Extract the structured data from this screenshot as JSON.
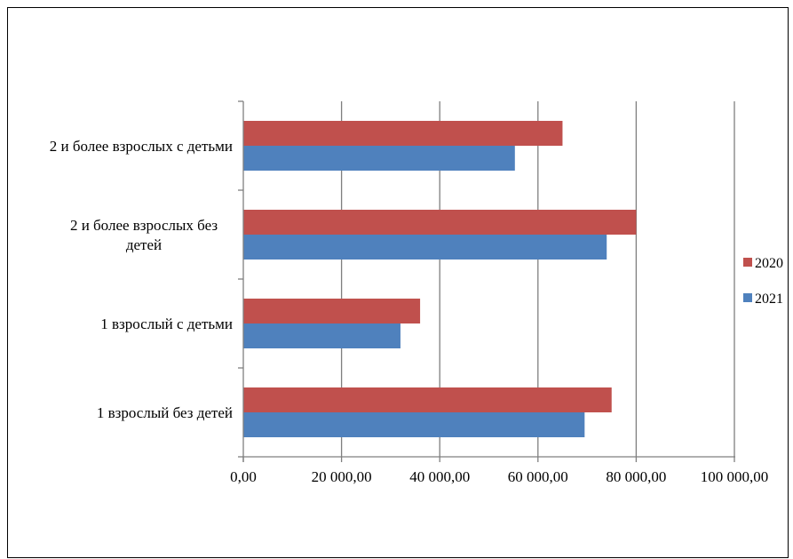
{
  "chart_data": {
    "type": "bar",
    "orientation": "horizontal",
    "categories": [
      "2 и более взрослых с детьми",
      "2 и более взрослых без детей",
      "1 взрослый с детьми",
      "1 взрослый без детей"
    ],
    "category_label_lines": [
      [
        "2 и более взрослых с детьми"
      ],
      [
        "2 и более взрослых без",
        "детей"
      ],
      [
        "1 взрослый с детьми"
      ],
      [
        "1 взрослый без детей"
      ]
    ],
    "series": [
      {
        "name": "2020",
        "color": "#C0504D",
        "values": [
          65000,
          80000,
          36000,
          75000
        ]
      },
      {
        "name": "2021",
        "color": "#4F81BD",
        "values": [
          55300,
          74000,
          32000,
          69500
        ]
      }
    ],
    "xlim": [
      0,
      100000
    ],
    "x_ticks": [
      0,
      20000,
      40000,
      60000,
      80000,
      100000
    ],
    "x_tick_labels": [
      "0,00",
      "20 000,00",
      "40 000,00",
      "60 000,00",
      "80 000,00",
      "100 000,00"
    ],
    "grid": "vertical",
    "legend_position": "right"
  }
}
